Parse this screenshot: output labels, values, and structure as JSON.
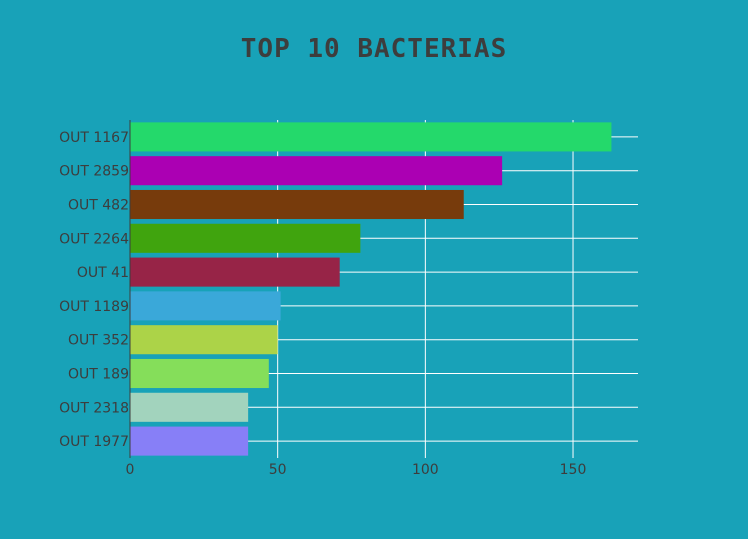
{
  "chart_data": {
    "type": "bar",
    "orientation": "horizontal",
    "title": "TOP 10 BACTERIAS",
    "xlabel": "",
    "ylabel": "",
    "xlim": [
      0,
      172
    ],
    "xticks": [
      "0",
      "50",
      "100",
      "150"
    ],
    "grid": true,
    "categories": [
      "OUT 1167",
      "OUT 2859",
      "OUT 482",
      "OUT 2264",
      "OUT 41",
      "OUT 1189",
      "OUT 352",
      "OUT 189",
      "OUT 2318",
      "OUT 1977"
    ],
    "values": [
      163,
      126,
      113,
      78,
      71,
      51,
      50,
      47,
      40,
      40
    ],
    "colors": [
      "#24d96b",
      "#ab00b3",
      "#773b0c",
      "#40a40e",
      "#972447",
      "#3aa8d9",
      "#acd348",
      "#85de5a",
      "#a2d3bd",
      "#877ff7"
    ]
  },
  "colors": {
    "background": "#18a2b8",
    "grid": "#ffffff",
    "text": "#3d3d3d"
  }
}
